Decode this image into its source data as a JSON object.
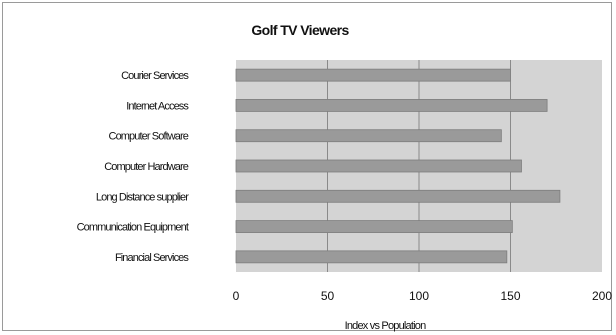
{
  "chart_data": {
    "type": "bar",
    "orientation": "horizontal",
    "title": "Golf TV Viewers",
    "xlabel": "Index vs Population",
    "ylabel": "",
    "categories": [
      "Courier Services",
      "Internet Access",
      "Computer Software",
      "Computer Hardware",
      "Long Distance supplier",
      "Communication Equipment",
      "Financial Services"
    ],
    "values": [
      150,
      170,
      145,
      156,
      177,
      151,
      148
    ],
    "xlim": [
      0,
      200
    ],
    "xticks": [
      0,
      50,
      100,
      150,
      200
    ],
    "grid": true,
    "legend": "none",
    "colors": {
      "bar": "#9a9a9a",
      "bar_edge": "#7d7d7d",
      "plot_background": "#d4d4d4",
      "gridline": "#8a8a8a"
    }
  }
}
